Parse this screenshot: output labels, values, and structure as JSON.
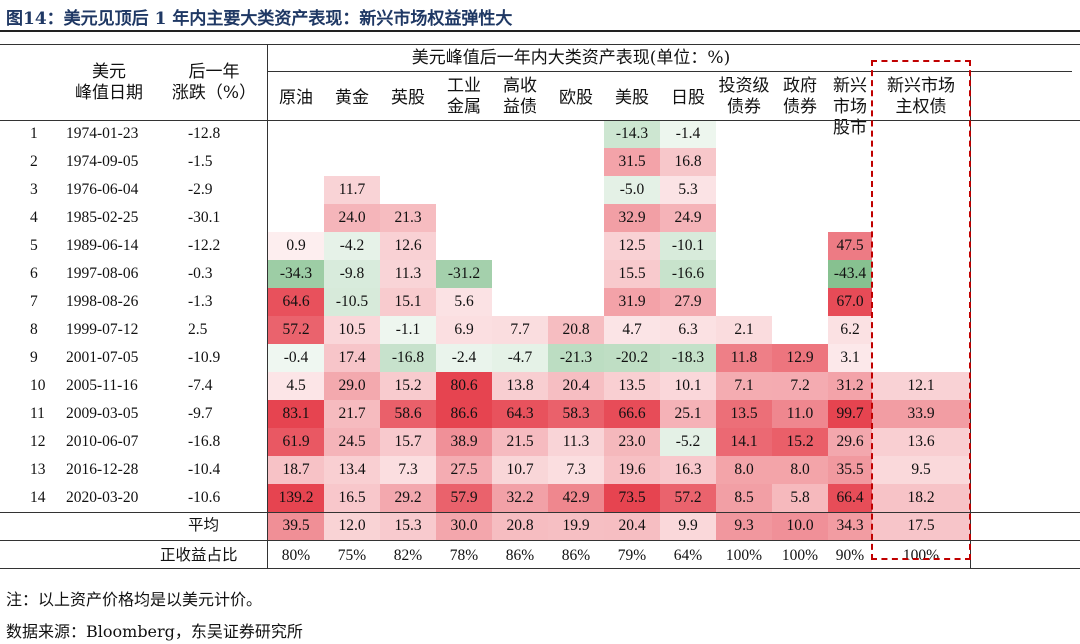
{
  "title": "图14：美元见顶后 1 年内主要大类资产表现：新兴市场权益弹性大",
  "header": {
    "group_title": "美元峰值后一年内大类资产表现(单位：%)",
    "peak_date": "美元\n峰值日期",
    "change": "后一年\n涨跌（%）",
    "assets": [
      "原油",
      "黄金",
      "英股",
      "工业\n金属",
      "高收\n益债",
      "欧股",
      "美股",
      "日股",
      "投资级\n债券",
      "政府\n债券",
      "新兴市场\n股市",
      "新兴市场\n主权债"
    ]
  },
  "rows": [
    {
      "no": "1",
      "date": "1974-01-23",
      "chg": "-12.8",
      "v": [
        "",
        "",
        "",
        "",
        "",
        "",
        "-14.3",
        "-1.4",
        "",
        "",
        "",
        ""
      ]
    },
    {
      "no": "2",
      "date": "1974-09-05",
      "chg": "-1.5",
      "v": [
        "",
        "",
        "",
        "",
        "",
        "",
        "31.5",
        "16.8",
        "",
        "",
        "",
        ""
      ]
    },
    {
      "no": "3",
      "date": "1976-06-04",
      "chg": "-2.9",
      "v": [
        "",
        "11.7",
        "",
        "",
        "",
        "",
        "-5.0",
        "5.3",
        "",
        "",
        "",
        ""
      ]
    },
    {
      "no": "4",
      "date": "1985-02-25",
      "chg": "-30.1",
      "v": [
        "",
        "24.0",
        "21.3",
        "",
        "",
        "",
        "32.9",
        "24.9",
        "",
        "",
        "",
        ""
      ]
    },
    {
      "no": "5",
      "date": "1989-06-14",
      "chg": "-12.2",
      "v": [
        "0.9",
        "-4.2",
        "12.6",
        "",
        "",
        "",
        "12.5",
        "-10.1",
        "",
        "",
        "47.5",
        ""
      ]
    },
    {
      "no": "6",
      "date": "1997-08-06",
      "chg": "-0.3",
      "v": [
        "-34.3",
        "-9.8",
        "11.3",
        "-31.2",
        "",
        "",
        "15.5",
        "-16.6",
        "",
        "",
        "-43.4",
        ""
      ]
    },
    {
      "no": "7",
      "date": "1998-08-26",
      "chg": "-1.3",
      "v": [
        "64.6",
        "-10.5",
        "15.1",
        "5.6",
        "",
        "",
        "31.9",
        "27.9",
        "",
        "",
        "67.0",
        ""
      ]
    },
    {
      "no": "8",
      "date": "1999-07-12",
      "chg": "2.5",
      "v": [
        "57.2",
        "10.5",
        "-1.1",
        "6.9",
        "7.7",
        "20.8",
        "4.7",
        "6.3",
        "2.1",
        "",
        "6.2",
        ""
      ]
    },
    {
      "no": "9",
      "date": "2001-07-05",
      "chg": "-10.9",
      "v": [
        "-0.4",
        "17.4",
        "-16.8",
        "-2.4",
        "-4.7",
        "-21.3",
        "-20.2",
        "-18.3",
        "11.8",
        "12.9",
        "3.1",
        ""
      ]
    },
    {
      "no": "10",
      "date": "2005-11-16",
      "chg": "-7.4",
      "v": [
        "4.5",
        "29.0",
        "15.2",
        "80.6",
        "13.8",
        "20.4",
        "13.5",
        "10.1",
        "7.1",
        "7.2",
        "31.2",
        "12.1"
      ]
    },
    {
      "no": "11",
      "date": "2009-03-05",
      "chg": "-9.7",
      "v": [
        "83.1",
        "21.7",
        "58.6",
        "86.6",
        "64.3",
        "58.3",
        "66.6",
        "25.1",
        "13.5",
        "11.0",
        "99.7",
        "33.9"
      ]
    },
    {
      "no": "12",
      "date": "2010-06-07",
      "chg": "-16.8",
      "v": [
        "61.9",
        "24.5",
        "15.7",
        "38.9",
        "21.5",
        "11.3",
        "23.0",
        "-5.2",
        "14.1",
        "15.2",
        "29.6",
        "13.6"
      ]
    },
    {
      "no": "13",
      "date": "2016-12-28",
      "chg": "-10.4",
      "v": [
        "18.7",
        "13.4",
        "7.3",
        "27.5",
        "10.7",
        "7.3",
        "19.6",
        "16.3",
        "8.0",
        "8.0",
        "35.5",
        "9.5"
      ]
    },
    {
      "no": "14",
      "date": "2020-03-20",
      "chg": "-10.6",
      "v": [
        "139.2",
        "16.5",
        "29.2",
        "57.9",
        "32.2",
        "42.9",
        "73.5",
        "57.2",
        "8.5",
        "5.8",
        "66.4",
        "18.2"
      ]
    }
  ],
  "avg": {
    "label": "平均",
    "v": [
      "39.5",
      "12.0",
      "15.3",
      "30.0",
      "20.8",
      "19.9",
      "20.4",
      "9.9",
      "9.3",
      "10.0",
      "34.3",
      "17.5"
    ]
  },
  "pos": {
    "label": "正收益占比",
    "v": [
      "80%",
      "75%",
      "82%",
      "78%",
      "86%",
      "86%",
      "79%",
      "64%",
      "100%",
      "100%",
      "90%",
      "100%"
    ]
  },
  "notes": [
    "注：以上资产价格均是以美元计价。",
    "数据来源：Bloomberg，东吴证券研究所"
  ]
}
